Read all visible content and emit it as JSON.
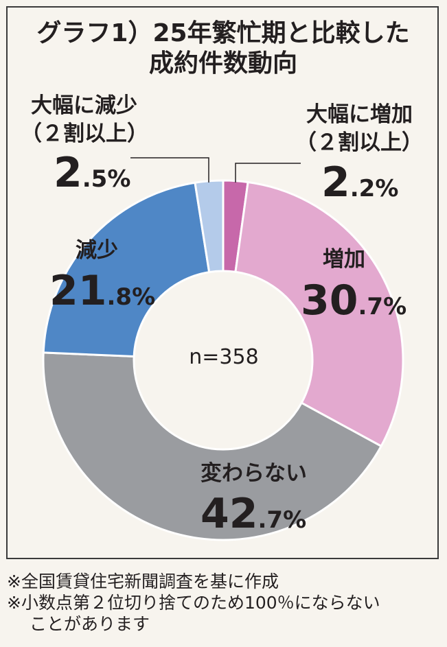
{
  "chart_data": {
    "type": "pie",
    "title_line1": "グラフ1）25年繁忙期と比較した",
    "title_line2": "成約件数動向",
    "center_label": "n=358",
    "slices": [
      {
        "label": "大幅に増加",
        "sublabel": "（２割以上）",
        "value": 2.2,
        "int": "2",
        "dec": ".2%",
        "color": "#c768aa"
      },
      {
        "label": "増加",
        "sublabel": "",
        "value": 30.7,
        "int": "30",
        "dec": ".7%",
        "color": "#e3a9cf"
      },
      {
        "label": "変わらない",
        "sublabel": "",
        "value": 42.7,
        "int": "42",
        "dec": ".7%",
        "color": "#9a9ca0"
      },
      {
        "label": "減少",
        "sublabel": "",
        "value": 21.8,
        "int": "21",
        "dec": ".8%",
        "color": "#4f87c6"
      },
      {
        "label": "大幅に減少",
        "sublabel": "（２割以上）",
        "value": 2.5,
        "int": "2",
        "dec": ".5%",
        "color": "#b4cbea"
      }
    ]
  },
  "notes": {
    "line1": "※全国賃貸住宅新聞調査を基に作成",
    "line2": "※小数点第２位切り捨てのため100％にならない",
    "line3": "ことがあります"
  }
}
